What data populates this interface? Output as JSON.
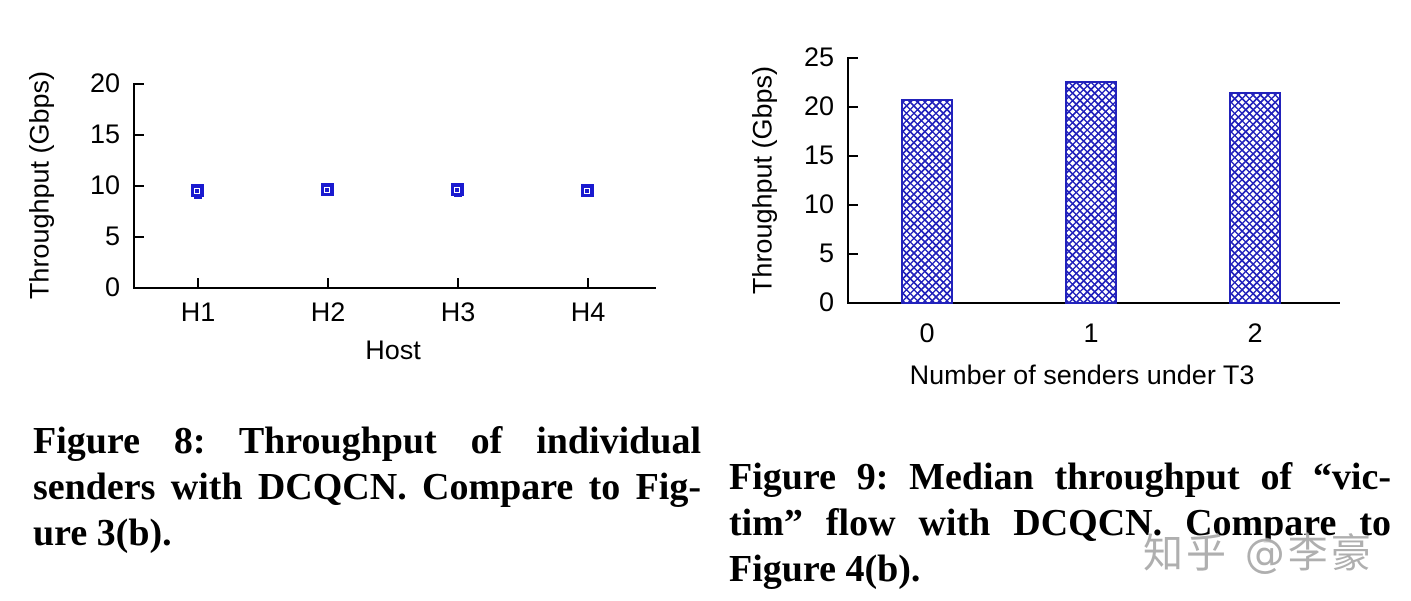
{
  "watermark": {
    "text": "知乎 @李豪",
    "color": "#a8a8a8"
  },
  "figure8": {
    "caption_lines": [
      "Figure 8: Throughput of individual",
      "senders with DCQCN. Compare to Fig-",
      "ure 3(b)."
    ]
  },
  "figure9": {
    "caption_lines": [
      "Figure 9: Median throughput of “vic-",
      "tim” flow with DCQCN. Compare to",
      "Figure 4(b)."
    ]
  },
  "chart_data": [
    {
      "type": "scatter",
      "title": "",
      "xlabel": "Host",
      "ylabel": "Throughput (Gbps)",
      "categories": [
        "H1",
        "H2",
        "H3",
        "H4"
      ],
      "values": [
        9.4,
        9.5,
        9.5,
        9.4
      ],
      "error_low": [
        8.7,
        9.2,
        8.9,
        9.2
      ],
      "error_high": [
        9.6,
        9.7,
        9.8,
        9.6
      ],
      "ylim": [
        0,
        20
      ],
      "yticks": [
        0,
        5,
        10,
        15,
        20
      ],
      "grid": false,
      "legend": "none",
      "marker": "blue-filled-square-with-inner-open-square-and-error-bars",
      "marker_color": "#1a1ad0"
    },
    {
      "type": "bar",
      "title": "",
      "xlabel": "Number of senders under T3",
      "ylabel": "Throughput (Gbps)",
      "categories": [
        "0",
        "1",
        "2"
      ],
      "values": [
        20.7,
        22.6,
        21.4
      ],
      "ylim": [
        0,
        25
      ],
      "yticks": [
        0,
        5,
        10,
        15,
        20,
        25
      ],
      "grid": false,
      "legend": "none",
      "bar_fill": "blue-crosshatch-on-white",
      "bar_color": "#2222bb"
    }
  ]
}
